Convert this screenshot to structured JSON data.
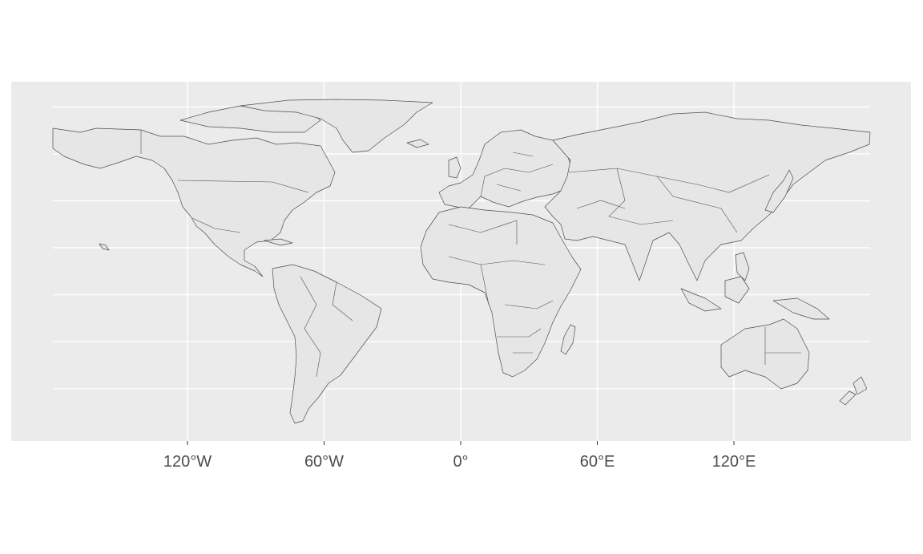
{
  "map": {
    "projection": "equirectangular",
    "panel_background": "#ebebeb",
    "gridline_color": "#ffffff",
    "land_fill": "#e6e6e6",
    "border_color": "#4d4d4d",
    "page_background": "#ffffff",
    "x_axis": {
      "ticks": [
        {
          "value": -120,
          "label": "120°W"
        },
        {
          "value": -60,
          "label": "60°W"
        },
        {
          "value": 0,
          "label": "0°"
        },
        {
          "value": 60,
          "label": "60°E"
        },
        {
          "value": 120,
          "label": "120°E"
        }
      ]
    },
    "y_gridlines": [
      80,
      60,
      40,
      20,
      0,
      -20,
      -40,
      -60
    ],
    "regions": [
      "North America",
      "South America",
      "Greenland",
      "Europe",
      "Africa",
      "Asia",
      "Australia",
      "Madagascar",
      "New Zealand",
      "Japan"
    ]
  }
}
